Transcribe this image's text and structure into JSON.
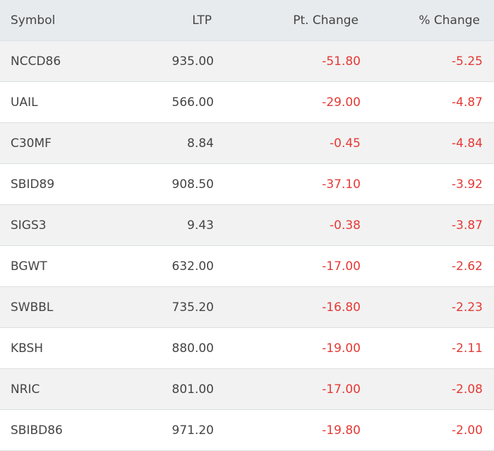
{
  "headers": {
    "symbol": "Symbol",
    "ltp": "LTP",
    "pt_change": "Pt. Change",
    "pct_change": "% Change"
  },
  "colors": {
    "negative": "#e53935"
  },
  "rows": [
    {
      "symbol": "NCCD86",
      "ltp": "935.00",
      "pt": "-51.80",
      "pct": "-5.25"
    },
    {
      "symbol": "UAIL",
      "ltp": "566.00",
      "pt": "-29.00",
      "pct": "-4.87"
    },
    {
      "symbol": "C30MF",
      "ltp": "8.84",
      "pt": "-0.45",
      "pct": "-4.84"
    },
    {
      "symbol": "SBID89",
      "ltp": "908.50",
      "pt": "-37.10",
      "pct": "-3.92"
    },
    {
      "symbol": "SIGS3",
      "ltp": "9.43",
      "pt": "-0.38",
      "pct": "-3.87"
    },
    {
      "symbol": "BGWT",
      "ltp": "632.00",
      "pt": "-17.00",
      "pct": "-2.62"
    },
    {
      "symbol": "SWBBL",
      "ltp": "735.20",
      "pt": "-16.80",
      "pct": "-2.23"
    },
    {
      "symbol": "KBSH",
      "ltp": "880.00",
      "pt": "-19.00",
      "pct": "-2.11"
    },
    {
      "symbol": "NRIC",
      "ltp": "801.00",
      "pt": "-17.00",
      "pct": "-2.08"
    },
    {
      "symbol": "SBIBD86",
      "ltp": "971.20",
      "pt": "-19.80",
      "pct": "-2.00"
    }
  ]
}
